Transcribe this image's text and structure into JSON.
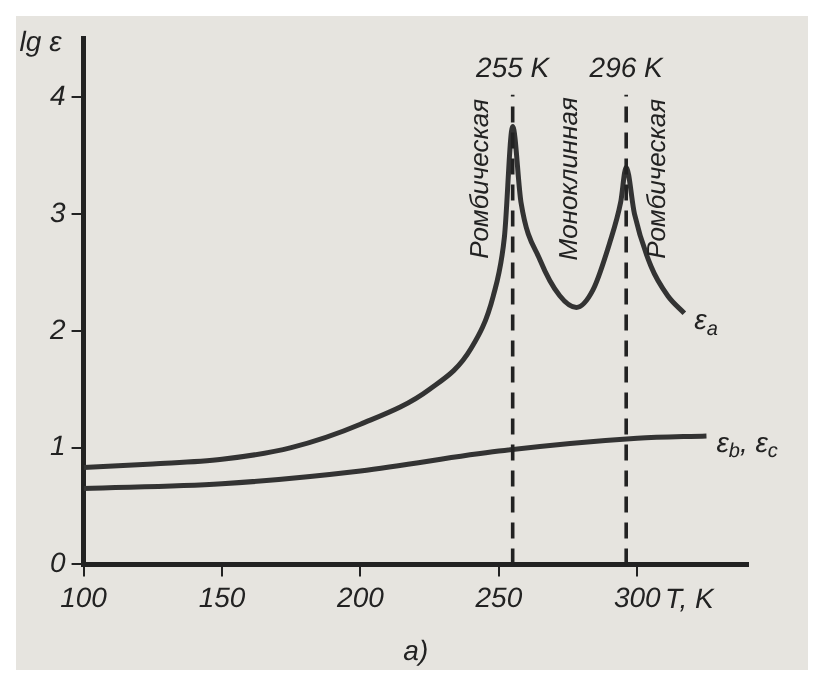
{
  "chart_data": {
    "type": "line",
    "xlabel": "T, K",
    "ylabel": "lg ε",
    "xlim": [
      100,
      340
    ],
    "ylim": [
      0,
      4.5
    ],
    "xticks": [
      100,
      150,
      200,
      250,
      300
    ],
    "yticks": [
      0,
      1,
      2,
      3,
      4
    ],
    "grid": false,
    "legend": false,
    "marker": "none",
    "line_style": "solid",
    "series": [
      {
        "name": "ε$_{a}$",
        "color": "#333333",
        "x": [
          100,
          125,
          150,
          175,
          200,
          225,
          240,
          248,
          252,
          255,
          258,
          265,
          272,
          278,
          284,
          290,
          294,
          296,
          299,
          305,
          311,
          317
        ],
        "values": [
          0.83,
          0.86,
          0.9,
          1.0,
          1.2,
          1.5,
          1.85,
          2.3,
          2.8,
          3.75,
          3.1,
          2.6,
          2.3,
          2.2,
          2.35,
          2.75,
          3.1,
          3.4,
          3.0,
          2.55,
          2.3,
          2.15
        ]
      },
      {
        "name": "ε$_{b}$, ε$_{c}$",
        "color": "#333333",
        "x": [
          100,
          150,
          200,
          250,
          300,
          325
        ],
        "values": [
          0.65,
          0.69,
          0.8,
          0.97,
          1.08,
          1.1
        ]
      }
    ],
    "ref_lines": [
      {
        "axis": "x",
        "value": 255,
        "label": "255 K",
        "line_style": "dashed"
      },
      {
        "axis": "x",
        "value": 296,
        "label": "296 K",
        "line_style": "dashed"
      }
    ],
    "annotations": [
      "Ромбическая",
      "Моноклинная",
      "Ромбическая",
      "а)"
    ]
  }
}
